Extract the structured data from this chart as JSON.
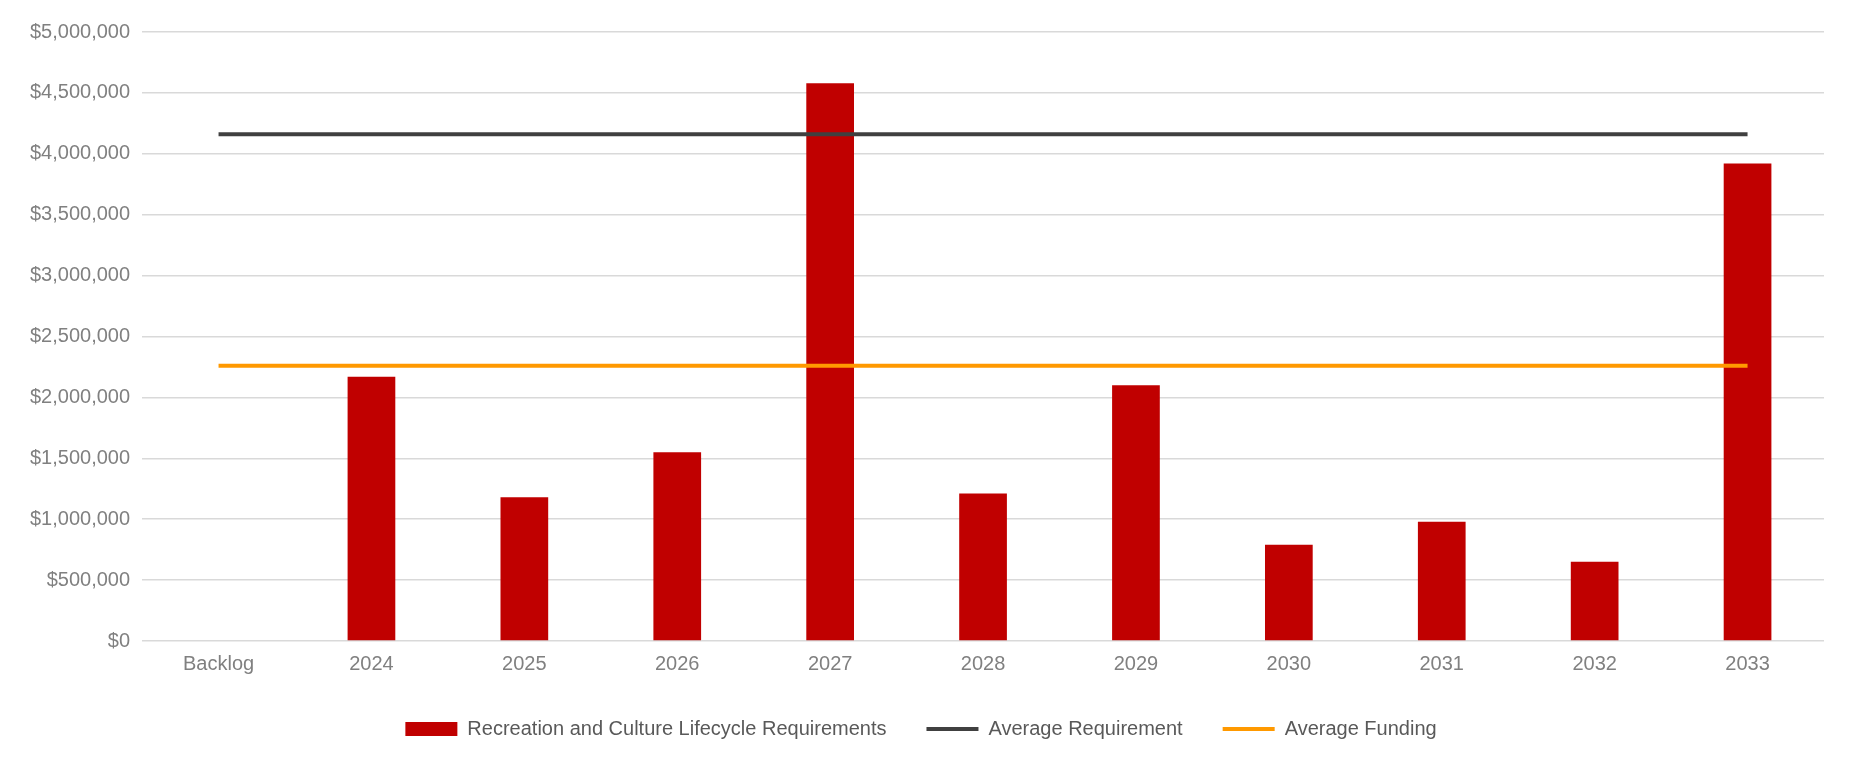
{
  "chart_data": {
    "type": "bar",
    "categories": [
      "Backlog",
      "2024",
      "2025",
      "2026",
      "2027",
      "2028",
      "2029",
      "2030",
      "2031",
      "2032",
      "2033"
    ],
    "series": [
      {
        "name": "Recreation and Culture Lifecycle Requirements",
        "color": "#c00000",
        "values": [
          0,
          2170000,
          1180000,
          1550000,
          4580000,
          1210000,
          2100000,
          790000,
          980000,
          650000,
          3920000
        ]
      },
      {
        "name": "Average Requirement",
        "type": "line",
        "color": "#404040",
        "values": [
          4160000,
          4160000,
          4160000,
          4160000,
          4160000,
          4160000,
          4160000,
          4160000,
          4160000,
          4160000,
          4160000
        ]
      },
      {
        "name": "Average Funding",
        "type": "line",
        "color": "#ff9900",
        "values": [
          2260000,
          2260000,
          2260000,
          2260000,
          2260000,
          2260000,
          2260000,
          2260000,
          2260000,
          2260000,
          2260000
        ]
      }
    ],
    "ylim": [
      0,
      5000000
    ],
    "yticks": [
      {
        "value": 0,
        "label": "$0"
      },
      {
        "value": 500000,
        "label": "$500,000"
      },
      {
        "value": 1000000,
        "label": "$1,000,000"
      },
      {
        "value": 1500000,
        "label": "$1,500,000"
      },
      {
        "value": 2000000,
        "label": "$2,000,000"
      },
      {
        "value": 2500000,
        "label": "$2,500,000"
      },
      {
        "value": 3000000,
        "label": "$3,000,000"
      },
      {
        "value": 3500000,
        "label": "$3,500,000"
      },
      {
        "value": 4000000,
        "label": "$4,000,000"
      },
      {
        "value": 4500000,
        "label": "$4,500,000"
      },
      {
        "value": 5000000,
        "label": "$5,000,000"
      }
    ],
    "grid": "y",
    "legend": "bottom"
  }
}
